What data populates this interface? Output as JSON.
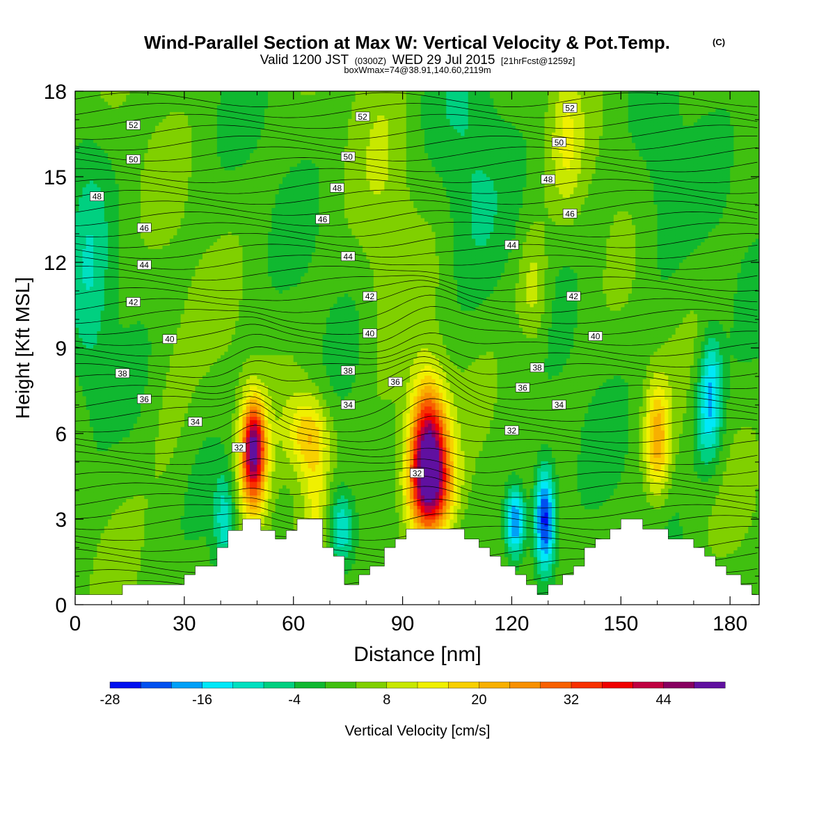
{
  "header": {
    "title": "Wind-Parallel Section at Max W: Vertical Velocity & Pot.Temp.",
    "title_mark": "(C)",
    "valid_prefix": "Valid 1200 JST",
    "valid_zulu": "(0300Z)",
    "valid_date": "WED 29 Jul 2015",
    "forecast": "[21hrFcst@1259z]",
    "box_info": "boxWmax=74@38.91,140.60,2119m"
  },
  "colorbar": {
    "label": "Vertical Velocity [cm/s]",
    "tick_labels": [
      "-28",
      "-16",
      "-4",
      "8",
      "20",
      "32",
      "44"
    ],
    "levels": [
      -28,
      -24,
      -20,
      -16,
      -12,
      -8,
      -4,
      0,
      4,
      8,
      12,
      16,
      20,
      24,
      28,
      32,
      36,
      40,
      44,
      48
    ],
    "colors": [
      "#0010f0",
      "#0050f0",
      "#00a0f8",
      "#00e8f8",
      "#00e0c0",
      "#00d080",
      "#10b830",
      "#40c010",
      "#80d000",
      "#c8e800",
      "#f0f000",
      "#f8d000",
      "#f8b000",
      "#f89000",
      "#f86000",
      "#f83000",
      "#f00000",
      "#c00040",
      "#880060",
      "#6010a0"
    ]
  },
  "chart_data": {
    "type": "heatmap",
    "xlabel": "Distance [nm]",
    "ylabel": "Height [Kft MSL]",
    "xlim": [
      0,
      188
    ],
    "ylim": [
      0,
      18
    ],
    "xticks": [
      0,
      30,
      60,
      90,
      120,
      150,
      180
    ],
    "yticks": [
      0,
      3,
      6,
      9,
      12,
      15,
      18
    ],
    "field": "vertical velocity (cm/s), shaded",
    "background_value": 2,
    "features": [
      {
        "x": 49,
        "y": 5.6,
        "sx": 2.2,
        "sy": 1.1,
        "amp": 34
      },
      {
        "x": 49,
        "y": 4.4,
        "sx": 2.8,
        "sy": 1.6,
        "amp": 16
      },
      {
        "x": 64,
        "y": 6.0,
        "sx": 4.0,
        "sy": 1.0,
        "amp": 16
      },
      {
        "x": 66,
        "y": 3.8,
        "sx": 2.5,
        "sy": 1.5,
        "amp": 8
      },
      {
        "x": 97,
        "y": 5.4,
        "sx": 3.6,
        "sy": 1.7,
        "amp": 46
      },
      {
        "x": 98,
        "y": 4.0,
        "sx": 4.8,
        "sy": 1.2,
        "amp": 22
      },
      {
        "x": 160,
        "y": 5.8,
        "sx": 2.4,
        "sy": 1.4,
        "amp": 20
      },
      {
        "x": 41,
        "y": 3.0,
        "sx": 2.0,
        "sy": 1.2,
        "amp": -12
      },
      {
        "x": 73,
        "y": 2.7,
        "sx": 2.5,
        "sy": 1.0,
        "amp": -16
      },
      {
        "x": 121,
        "y": 2.9,
        "sx": 2.0,
        "sy": 0.9,
        "amp": -26
      },
      {
        "x": 129,
        "y": 3.0,
        "sx": 2.0,
        "sy": 1.3,
        "amp": -30
      },
      {
        "x": 174,
        "y": 6.6,
        "sx": 2.6,
        "sy": 1.3,
        "amp": -16
      },
      {
        "x": 175,
        "y": 8.2,
        "sx": 2.0,
        "sy": 1.1,
        "amp": -10
      },
      {
        "x": 126,
        "y": 11.0,
        "sx": 3.0,
        "sy": 1.5,
        "amp": 9
      },
      {
        "x": 135,
        "y": 16.2,
        "sx": 3.0,
        "sy": 1.8,
        "amp": 8
      },
      {
        "x": 108,
        "y": 15.0,
        "sx": 6.0,
        "sy": 4.0,
        "amp": -5
      },
      {
        "x": 4,
        "y": 11.0,
        "sx": 4.0,
        "sy": 4.0,
        "amp": -7
      },
      {
        "x": 85,
        "y": 12.0,
        "sx": 5.0,
        "sy": 6.0,
        "amp": 4
      },
      {
        "x": 160,
        "y": 14.0,
        "sx": 5.0,
        "sy": 3.0,
        "amp": -4
      },
      {
        "x": 26,
        "y": 6.5,
        "sx": 5.0,
        "sy": 3.0,
        "amp": 4
      }
    ],
    "terrain_kft": [
      [
        0,
        0.35
      ],
      [
        13,
        0.35
      ],
      [
        13,
        0.7
      ],
      [
        30,
        0.7
      ],
      [
        30,
        1.05
      ],
      [
        33,
        1.05
      ],
      [
        33,
        1.35
      ],
      [
        39,
        1.35
      ],
      [
        39,
        2.0
      ],
      [
        42,
        2.0
      ],
      [
        42,
        2.6
      ],
      [
        46,
        2.6
      ],
      [
        46,
        3.0
      ],
      [
        51,
        3.0
      ],
      [
        51,
        2.6
      ],
      [
        55,
        2.6
      ],
      [
        55,
        2.3
      ],
      [
        58,
        2.3
      ],
      [
        58,
        2.6
      ],
      [
        61,
        2.6
      ],
      [
        61,
        3.0
      ],
      [
        68,
        3.0
      ],
      [
        68,
        2.0
      ],
      [
        71,
        2.0
      ],
      [
        71,
        1.7
      ],
      [
        74,
        1.7
      ],
      [
        74,
        0.7
      ],
      [
        78,
        0.7
      ],
      [
        78,
        1.05
      ],
      [
        81,
        1.05
      ],
      [
        81,
        1.35
      ],
      [
        85,
        1.35
      ],
      [
        85,
        2.0
      ],
      [
        88,
        2.0
      ],
      [
        88,
        2.3
      ],
      [
        91,
        2.3
      ],
      [
        91,
        2.65
      ],
      [
        107,
        2.65
      ],
      [
        107,
        2.3
      ],
      [
        111,
        2.3
      ],
      [
        111,
        2.0
      ],
      [
        114,
        2.0
      ],
      [
        114,
        1.7
      ],
      [
        117,
        1.7
      ],
      [
        117,
        1.35
      ],
      [
        121,
        1.35
      ],
      [
        121,
        1.05
      ],
      [
        124,
        1.05
      ],
      [
        124,
        0.7
      ],
      [
        127,
        0.7
      ],
      [
        127,
        0.35
      ],
      [
        130,
        0.35
      ],
      [
        130,
        0.7
      ],
      [
        134,
        0.7
      ],
      [
        134,
        1.05
      ],
      [
        137,
        1.05
      ],
      [
        137,
        1.35
      ],
      [
        140,
        1.35
      ],
      [
        140,
        2.0
      ],
      [
        143,
        2.0
      ],
      [
        143,
        2.3
      ],
      [
        147,
        2.3
      ],
      [
        147,
        2.65
      ],
      [
        150,
        2.65
      ],
      [
        150,
        3.0
      ],
      [
        156,
        3.0
      ],
      [
        156,
        2.65
      ],
      [
        163,
        2.65
      ],
      [
        163,
        2.3
      ],
      [
        170,
        2.3
      ],
      [
        170,
        2.0
      ],
      [
        173,
        2.0
      ],
      [
        173,
        1.7
      ],
      [
        176,
        1.7
      ],
      [
        176,
        1.35
      ],
      [
        179,
        1.35
      ],
      [
        179,
        1.05
      ],
      [
        183,
        1.05
      ],
      [
        183,
        0.7
      ],
      [
        186,
        0.7
      ],
      [
        186,
        0.35
      ],
      [
        188,
        0.35
      ]
    ],
    "contours": {
      "name": "Potential temperature",
      "levels": [
        32,
        34,
        36,
        38,
        40,
        42,
        44,
        46,
        48,
        50,
        52
      ],
      "labels": [
        {
          "text": "52",
          "x": 16,
          "y": 16.8
        },
        {
          "text": "50",
          "x": 16,
          "y": 15.6
        },
        {
          "text": "48",
          "x": 6,
          "y": 14.3
        },
        {
          "text": "46",
          "x": 19,
          "y": 13.2
        },
        {
          "text": "44",
          "x": 19,
          "y": 11.9
        },
        {
          "text": "42",
          "x": 16,
          "y": 10.6
        },
        {
          "text": "40",
          "x": 26,
          "y": 9.3
        },
        {
          "text": "38",
          "x": 13,
          "y": 8.1
        },
        {
          "text": "36",
          "x": 19,
          "y": 7.2
        },
        {
          "text": "34",
          "x": 33,
          "y": 6.4
        },
        {
          "text": "32",
          "x": 45,
          "y": 5.5
        },
        {
          "text": "52",
          "x": 79,
          "y": 17.1
        },
        {
          "text": "50",
          "x": 75,
          "y": 15.7
        },
        {
          "text": "48",
          "x": 72,
          "y": 14.6
        },
        {
          "text": "46",
          "x": 68,
          "y": 13.5
        },
        {
          "text": "44",
          "x": 75,
          "y": 12.2
        },
        {
          "text": "42",
          "x": 81,
          "y": 10.8
        },
        {
          "text": "40",
          "x": 81,
          "y": 9.5
        },
        {
          "text": "38",
          "x": 75,
          "y": 8.2
        },
        {
          "text": "36",
          "x": 88,
          "y": 7.8
        },
        {
          "text": "34",
          "x": 75,
          "y": 7.0
        },
        {
          "text": "32",
          "x": 94,
          "y": 4.6
        },
        {
          "text": "52",
          "x": 136,
          "y": 17.4
        },
        {
          "text": "50",
          "x": 133,
          "y": 16.2
        },
        {
          "text": "48",
          "x": 130,
          "y": 14.9
        },
        {
          "text": "46",
          "x": 136,
          "y": 13.7
        },
        {
          "text": "44",
          "x": 120,
          "y": 12.6
        },
        {
          "text": "42",
          "x": 137,
          "y": 10.8
        },
        {
          "text": "40",
          "x": 143,
          "y": 9.4
        },
        {
          "text": "38",
          "x": 127,
          "y": 8.3
        },
        {
          "text": "36",
          "x": 123,
          "y": 7.6
        },
        {
          "text": "34",
          "x": 133,
          "y": 7.0
        },
        {
          "text": "32",
          "x": 120,
          "y": 6.1
        }
      ]
    }
  }
}
